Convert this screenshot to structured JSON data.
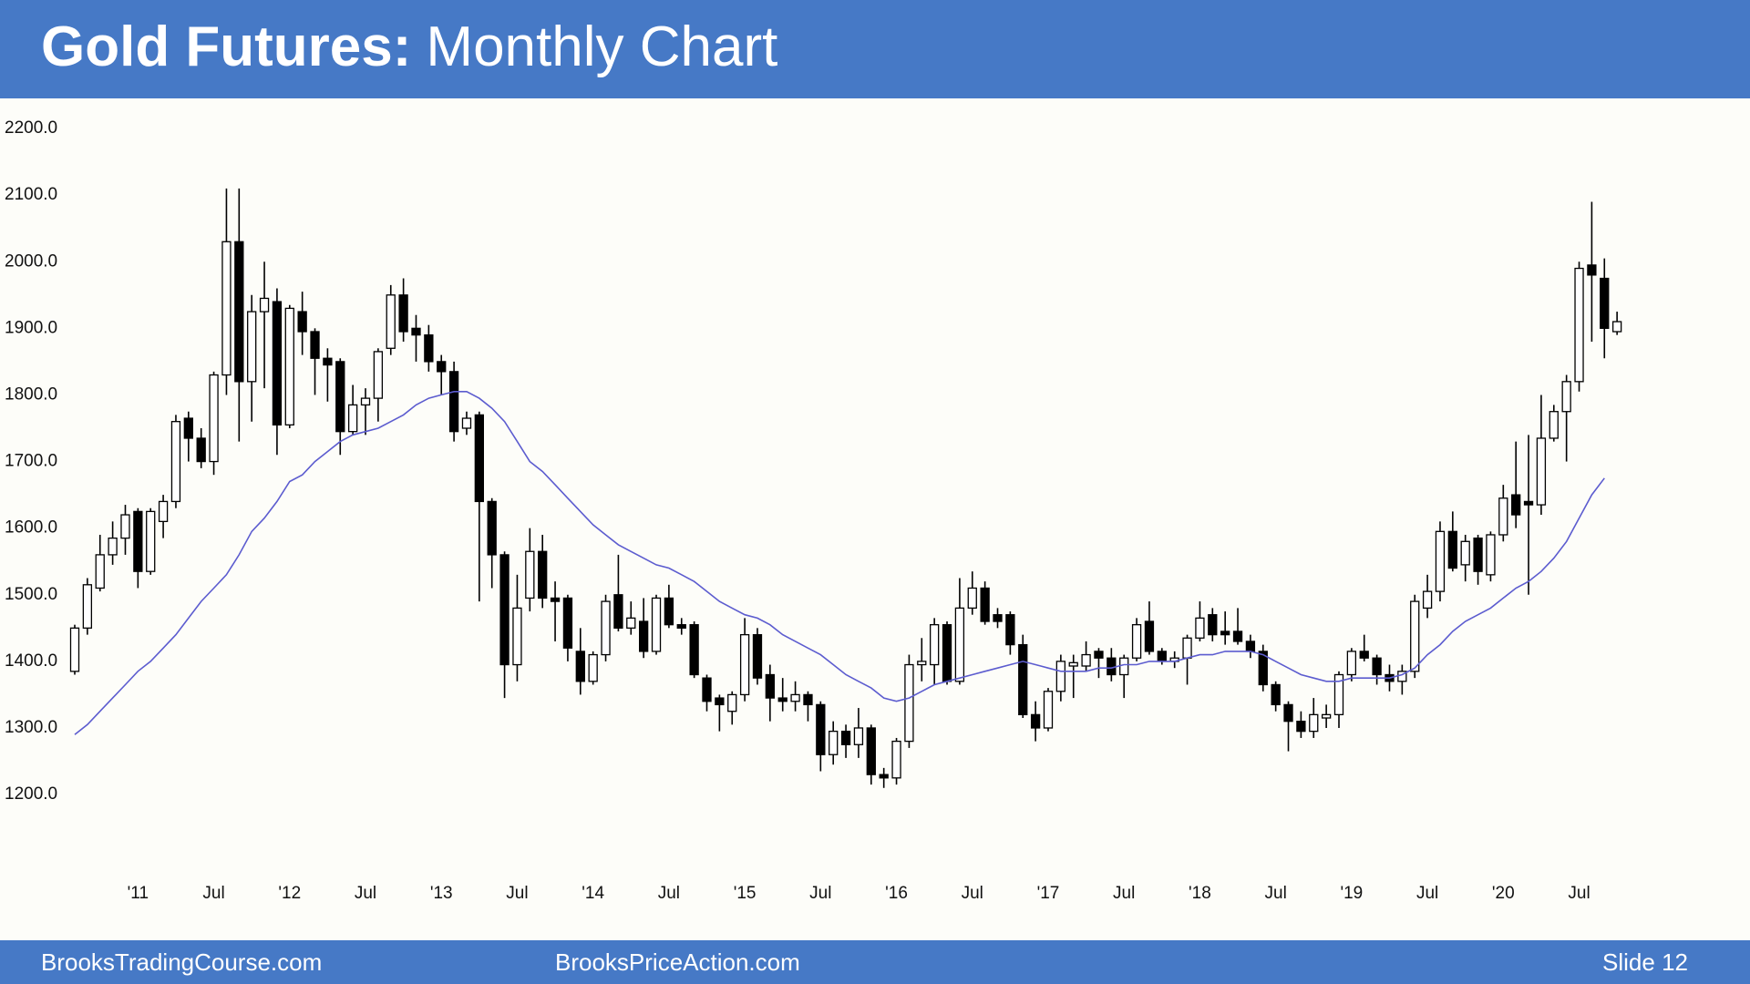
{
  "chart_data": {
    "type": "candlestick",
    "title_bold": "Gold Futures:",
    "title": "Monthly Chart",
    "categories": [
      null,
      null,
      null,
      null,
      null,
      "'11",
      null,
      null,
      null,
      null,
      null,
      "Jul",
      null,
      null,
      null,
      null,
      null,
      "'12",
      null,
      null,
      null,
      null,
      null,
      "Jul",
      null,
      null,
      null,
      null,
      null,
      "'13",
      null,
      null,
      null,
      null,
      null,
      "Jul",
      null,
      null,
      null,
      null,
      null,
      "'14",
      null,
      null,
      null,
      null,
      null,
      "Jul",
      null,
      null,
      null,
      null,
      null,
      "'15",
      null,
      null,
      null,
      null,
      null,
      "Jul",
      null,
      null,
      null,
      null,
      null,
      "'16",
      null,
      null,
      null,
      null,
      null,
      "Jul",
      null,
      null,
      null,
      null,
      null,
      "'17",
      null,
      null,
      null,
      null,
      null,
      "Jul",
      null,
      null,
      null,
      null,
      null,
      "'18",
      null,
      null,
      null,
      null,
      null,
      "Jul",
      null,
      null,
      null,
      null,
      null,
      "'19",
      null,
      null,
      null,
      null,
      null,
      "Jul",
      null,
      null,
      null,
      null,
      null,
      "'20",
      null,
      null,
      null,
      null,
      null,
      "Jul",
      null,
      null,
      null
    ],
    "open": [
      1385,
      1450,
      1510,
      1560,
      1585,
      1625,
      1535,
      1610,
      1640,
      1765,
      1735,
      1700,
      1830,
      2030,
      1820,
      1925,
      1940,
      1755,
      1925,
      1895,
      1855,
      1850,
      1745,
      1785,
      1795,
      1870,
      1950,
      1900,
      1890,
      1850,
      1835,
      1750,
      1770,
      1640,
      1560,
      1395,
      1495,
      1565,
      1495,
      1495,
      1415,
      1370,
      1410,
      1500,
      1450,
      1460,
      1415,
      1495,
      1455,
      1455,
      1375,
      1345,
      1325,
      1350,
      1440,
      1380,
      1345,
      1340,
      1350,
      1335,
      1260,
      1295,
      1275,
      1300,
      1230,
      1225,
      1280,
      1395,
      1395,
      1455,
      1370,
      1480,
      1510,
      1470,
      1470,
      1425,
      1320,
      1300,
      1355,
      1393,
      1393,
      1415,
      1405,
      1380,
      1405,
      1460,
      1415,
      1400,
      1405,
      1435,
      1470,
      1445,
      1445,
      1430,
      1415,
      1365,
      1335,
      1310,
      1295,
      1315,
      1320,
      1380,
      1415,
      1405,
      1380,
      1370,
      1385,
      1480,
      1505,
      1595,
      1545,
      1585,
      1530,
      1590,
      1650,
      1640,
      1635,
      1735,
      1775,
      1820,
      1995,
      1975,
      1895
    ],
    "high": [
      1455,
      1525,
      1590,
      1610,
      1635,
      1630,
      1630,
      1650,
      1770,
      1775,
      1750,
      1835,
      2110,
      2110,
      1950,
      2000,
      1960,
      1935,
      1955,
      1900,
      1870,
      1855,
      1815,
      1810,
      1870,
      1965,
      1975,
      1920,
      1905,
      1860,
      1850,
      1775,
      1775,
      1645,
      1565,
      1530,
      1600,
      1590,
      1520,
      1500,
      1450,
      1415,
      1500,
      1560,
      1490,
      1495,
      1500,
      1515,
      1465,
      1460,
      1380,
      1350,
      1355,
      1465,
      1450,
      1395,
      1375,
      1370,
      1355,
      1340,
      1310,
      1305,
      1330,
      1305,
      1240,
      1285,
      1410,
      1435,
      1465,
      1460,
      1525,
      1535,
      1520,
      1480,
      1475,
      1440,
      1340,
      1360,
      1410,
      1410,
      1430,
      1420,
      1420,
      1410,
      1465,
      1490,
      1420,
      1415,
      1440,
      1490,
      1480,
      1475,
      1480,
      1440,
      1425,
      1370,
      1340,
      1325,
      1345,
      1335,
      1385,
      1420,
      1440,
      1410,
      1395,
      1395,
      1500,
      1530,
      1610,
      1625,
      1590,
      1590,
      1595,
      1665,
      1730,
      1740,
      1800,
      1785,
      1830,
      2000,
      2090,
      2005,
      1925
    ],
    "low": [
      1380,
      1440,
      1505,
      1545,
      1560,
      1510,
      1530,
      1585,
      1630,
      1700,
      1690,
      1680,
      1800,
      1730,
      1760,
      1810,
      1710,
      1750,
      1860,
      1800,
      1790,
      1710,
      1740,
      1740,
      1760,
      1860,
      1880,
      1850,
      1835,
      1800,
      1730,
      1740,
      1490,
      1510,
      1345,
      1370,
      1475,
      1480,
      1430,
      1400,
      1350,
      1365,
      1400,
      1445,
      1440,
      1405,
      1410,
      1450,
      1440,
      1375,
      1325,
      1295,
      1305,
      1340,
      1365,
      1310,
      1325,
      1325,
      1310,
      1235,
      1245,
      1255,
      1255,
      1215,
      1210,
      1215,
      1270,
      1370,
      1365,
      1365,
      1365,
      1470,
      1455,
      1450,
      1410,
      1315,
      1280,
      1295,
      1340,
      1345,
      1385,
      1375,
      1370,
      1345,
      1400,
      1410,
      1395,
      1390,
      1365,
      1430,
      1430,
      1425,
      1425,
      1405,
      1355,
      1325,
      1265,
      1285,
      1285,
      1300,
      1300,
      1370,
      1400,
      1365,
      1355,
      1350,
      1375,
      1465,
      1490,
      1535,
      1520,
      1515,
      1520,
      1580,
      1600,
      1500,
      1620,
      1730,
      1700,
      1805,
      1880,
      1855,
      1890
    ],
    "close": [
      1450,
      1515,
      1560,
      1585,
      1620,
      1535,
      1625,
      1640,
      1760,
      1735,
      1700,
      1830,
      2030,
      1820,
      1925,
      1945,
      1755,
      1930,
      1895,
      1855,
      1845,
      1745,
      1785,
      1795,
      1865,
      1950,
      1895,
      1890,
      1850,
      1835,
      1745,
      1765,
      1640,
      1560,
      1395,
      1480,
      1565,
      1495,
      1490,
      1420,
      1370,
      1410,
      1490,
      1450,
      1465,
      1415,
      1495,
      1455,
      1450,
      1380,
      1340,
      1335,
      1350,
      1440,
      1375,
      1345,
      1340,
      1350,
      1335,
      1260,
      1295,
      1275,
      1300,
      1230,
      1225,
      1280,
      1395,
      1400,
      1455,
      1370,
      1480,
      1510,
      1460,
      1460,
      1425,
      1320,
      1300,
      1355,
      1400,
      1398,
      1410,
      1405,
      1380,
      1405,
      1455,
      1415,
      1400,
      1405,
      1435,
      1465,
      1440,
      1440,
      1430,
      1415,
      1365,
      1335,
      1310,
      1295,
      1320,
      1320,
      1380,
      1415,
      1405,
      1380,
      1370,
      1385,
      1490,
      1505,
      1595,
      1540,
      1580,
      1535,
      1590,
      1645,
      1620,
      1635,
      1735,
      1775,
      1820,
      1990,
      1980,
      1900,
      1910
    ],
    "up_color": "#ffffff",
    "down_color": "#000000",
    "ma_values": [
      1290,
      1305,
      1325,
      1345,
      1365,
      1385,
      1400,
      1420,
      1440,
      1465,
      1490,
      1510,
      1530,
      1560,
      1595,
      1615,
      1640,
      1670,
      1680,
      1700,
      1715,
      1730,
      1740,
      1745,
      1750,
      1760,
      1770,
      1785,
      1795,
      1800,
      1805,
      1805,
      1795,
      1780,
      1760,
      1730,
      1700,
      1685,
      1665,
      1645,
      1625,
      1605,
      1590,
      1575,
      1565,
      1555,
      1545,
      1540,
      1530,
      1520,
      1505,
      1490,
      1480,
      1470,
      1465,
      1455,
      1440,
      1430,
      1420,
      1410,
      1395,
      1380,
      1370,
      1360,
      1345,
      1340,
      1345,
      1355,
      1365,
      1370,
      1375,
      1380,
      1385,
      1390,
      1395,
      1400,
      1395,
      1390,
      1385,
      1385,
      1385,
      1390,
      1390,
      1395,
      1395,
      1400,
      1400,
      1400,
      1405,
      1410,
      1410,
      1415,
      1415,
      1415,
      1410,
      1400,
      1390,
      1380,
      1375,
      1370,
      1370,
      1375,
      1375,
      1375,
      1375,
      1380,
      1390,
      1410,
      1425,
      1445,
      1460,
      1470,
      1480,
      1495,
      1510,
      1520,
      1535,
      1555,
      1580,
      1615,
      1650,
      1675,
      null
    ],
    "ma_color": "#5c5ccf",
    "ylim": [
      1100,
      2220
    ],
    "yticks": [
      {
        "value": 1200,
        "label": "1200.0"
      },
      {
        "value": 1300,
        "label": "1300.0"
      },
      {
        "value": 1400,
        "label": "1400.0"
      },
      {
        "value": 1500,
        "label": "1500.0"
      },
      {
        "value": 1600,
        "label": "1600.0"
      },
      {
        "value": 1700,
        "label": "1700.0"
      },
      {
        "value": 1800,
        "label": "1800.0"
      },
      {
        "value": 1900,
        "label": "1900.0"
      },
      {
        "value": 2000,
        "label": "2000.0"
      },
      {
        "value": 2100,
        "label": "2100.0"
      },
      {
        "value": 2200,
        "label": "2200.0"
      }
    ],
    "grid": false
  },
  "footer": {
    "left": "BrooksTradingCourse.com",
    "center": "BrooksPriceAction.com",
    "slide": "Slide 12"
  }
}
